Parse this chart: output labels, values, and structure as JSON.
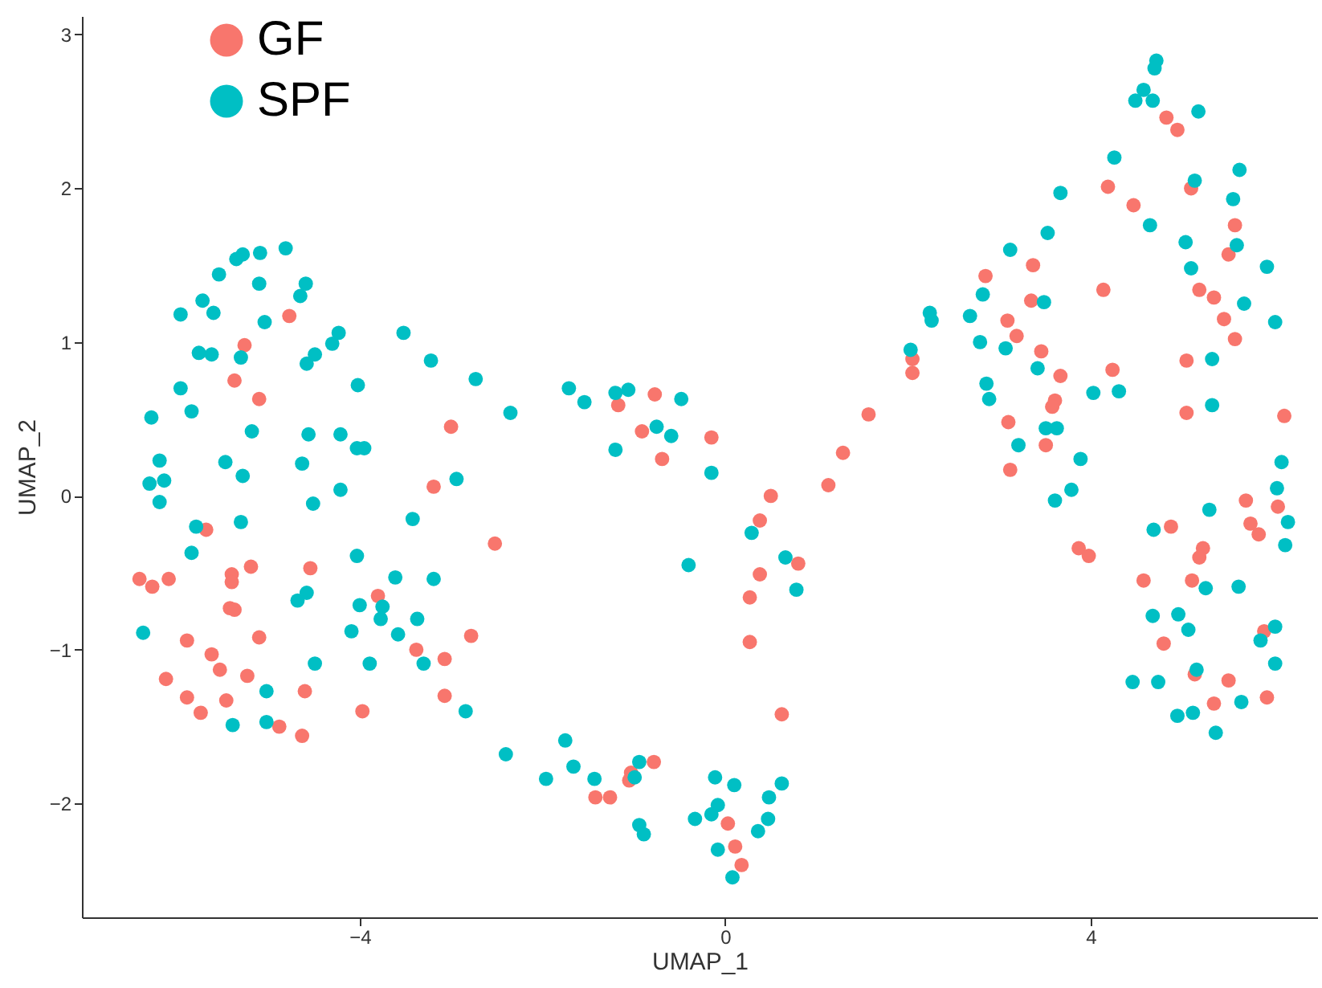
{
  "chart_data": {
    "type": "scatter",
    "xlabel": "UMAP_1",
    "ylabel": "UMAP_2",
    "xlim": [
      -7.04,
      6.48
    ],
    "ylim": [
      -2.74,
      3.12
    ],
    "xticks": [
      -4,
      0,
      4
    ],
    "yticks": [
      -2,
      -1,
      0,
      1,
      2,
      3
    ],
    "grid": false,
    "legend": "top left",
    "marker": "circle",
    "series": [
      {
        "name": "GF",
        "color": "#f8766d",
        "x": [
          -4.77,
          -5.26,
          -5.37,
          -5.1,
          -3.0,
          -3.19,
          -5.68,
          -2.52,
          -6.41,
          -6.27,
          -6.09,
          -5.4,
          -5.4,
          -5.19,
          -4.54,
          -3.8,
          -5.42,
          -5.37,
          -5.1,
          -5.89,
          -5.62,
          -5.53,
          -6.12,
          -5.23,
          -5.89,
          -5.46,
          -5.74,
          -4.6,
          -3.97,
          -4.88,
          -4.63,
          -3.38,
          -3.07,
          -2.78,
          -3.07,
          -1.17,
          -0.77,
          -0.91,
          -0.69,
          -0.15,
          0.5,
          0.38,
          0.38,
          0.8,
          0.27,
          0.27,
          0.62,
          -0.78,
          -1.03,
          -1.05,
          -1.42,
          -1.26,
          0.03,
          0.11,
          0.18,
          4.83,
          4.95,
          4.19,
          4.47,
          5.1,
          5.58,
          5.51,
          3.37,
          2.85,
          3.35,
          4.14,
          5.19,
          5.35,
          5.46,
          5.58,
          3.09,
          3.19,
          3.46,
          3.67,
          4.24,
          5.05,
          2.05,
          2.05,
          1.57,
          1.29,
          1.13,
          3.61,
          3.58,
          3.1,
          3.51,
          3.12,
          5.05,
          6.12,
          5.7,
          6.05,
          3.87,
          3.98,
          4.88,
          5.75,
          5.84,
          5.23,
          5.19,
          4.58,
          5.11,
          5.9,
          4.8,
          5.14,
          5.51,
          5.35,
          5.93
        ],
        "values": [
          1.17,
          0.98,
          0.75,
          0.63,
          0.45,
          0.06,
          -0.22,
          -0.31,
          -0.54,
          -0.59,
          -0.54,
          -0.51,
          -0.56,
          -0.46,
          -0.47,
          -0.65,
          -0.73,
          -0.74,
          -0.92,
          -0.94,
          -1.03,
          -1.13,
          -1.19,
          -1.17,
          -1.31,
          -1.33,
          -1.41,
          -1.27,
          -1.4,
          -1.5,
          -1.56,
          -1.0,
          -1.06,
          -0.91,
          -1.3,
          0.59,
          0.66,
          0.42,
          0.24,
          0.38,
          0.0,
          -0.16,
          -0.51,
          -0.44,
          -0.66,
          -0.95,
          -1.42,
          -1.73,
          -1.8,
          -1.85,
          -1.96,
          -1.96,
          -2.13,
          -2.28,
          -2.4,
          2.46,
          2.38,
          2.01,
          1.89,
          2.0,
          1.76,
          1.57,
          1.5,
          1.43,
          1.27,
          1.34,
          1.34,
          1.29,
          1.15,
          1.02,
          1.14,
          1.04,
          0.94,
          0.78,
          0.82,
          0.88,
          0.89,
          0.8,
          0.53,
          0.28,
          0.07,
          0.62,
          0.58,
          0.48,
          0.33,
          0.17,
          0.54,
          0.52,
          -0.03,
          -0.07,
          -0.34,
          -0.39,
          -0.2,
          -0.18,
          -0.25,
          -0.34,
          -0.4,
          -0.55,
          -0.55,
          -0.88,
          -0.96,
          -1.16,
          -1.2,
          -1.35,
          -1.31
        ]
      },
      {
        "name": "SPF",
        "color": "#00bfc4",
        "x": [
          -4.81,
          -5.09,
          -5.28,
          -5.35,
          -5.54,
          -5.1,
          -4.59,
          -4.65,
          -5.72,
          -5.96,
          -5.6,
          -5.04,
          -4.23,
          -4.3,
          -3.52,
          -5.76,
          -5.62,
          -5.3,
          -4.49,
          -4.58,
          -3.22,
          -2.73,
          -5.96,
          -4.02,
          -5.84,
          -6.28,
          -2.35,
          -5.18,
          -4.56,
          -4.21,
          -4.03,
          -3.95,
          -6.19,
          -5.47,
          -4.63,
          -2.94,
          -6.3,
          -6.14,
          -5.28,
          -4.21,
          -6.19,
          -4.51,
          -3.42,
          -5.79,
          -5.3,
          -5.84,
          -4.03,
          -3.61,
          -3.19,
          -4.58,
          -4.68,
          -4.0,
          -3.75,
          -3.77,
          -3.37,
          -6.37,
          -4.09,
          -3.58,
          -3.3,
          -4.49,
          -3.89,
          -5.02,
          -2.84,
          -5.39,
          -5.02,
          -1.71,
          -1.54,
          -1.2,
          -1.06,
          -0.48,
          -0.75,
          -0.59,
          -1.2,
          -0.15,
          -0.4,
          0.29,
          0.66,
          0.78,
          -2.4,
          -1.75,
          -1.66,
          -1.96,
          -1.43,
          -0.94,
          -0.99,
          -0.94,
          -0.89,
          -0.11,
          0.1,
          0.62,
          0.48,
          0.47,
          0.36,
          -0.08,
          -0.15,
          -0.33,
          -0.08,
          0.08,
          4.72,
          4.7,
          4.58,
          4.49,
          4.68,
          5.18,
          4.26,
          3.67,
          5.14,
          5.63,
          5.56,
          4.65,
          5.6,
          3.53,
          5.04,
          5.1,
          5.93,
          3.12,
          2.82,
          3.49,
          5.68,
          6.02,
          2.68,
          2.24,
          2.26,
          2.79,
          3.07,
          2.03,
          3.42,
          5.33,
          2.86,
          2.89,
          4.03,
          4.31,
          5.33,
          3.51,
          3.63,
          3.21,
          3.89,
          3.79,
          3.61,
          6.09,
          6.04,
          5.3,
          6.16,
          6.13,
          4.69,
          5.26,
          5.62,
          4.68,
          4.96,
          5.07,
          6.02,
          5.86,
          6.02,
          5.16,
          4.46,
          4.74,
          5.65,
          4.95,
          5.12,
          5.37
        ],
        "values": [
          1.61,
          1.58,
          1.57,
          1.54,
          1.44,
          1.38,
          1.38,
          1.3,
          1.27,
          1.18,
          1.19,
          1.13,
          1.06,
          0.99,
          1.06,
          0.93,
          0.92,
          0.9,
          0.92,
          0.86,
          0.88,
          0.76,
          0.7,
          0.72,
          0.55,
          0.51,
          0.54,
          0.42,
          0.4,
          0.4,
          0.31,
          0.31,
          0.23,
          0.22,
          0.21,
          0.11,
          0.08,
          0.1,
          0.13,
          0.04,
          -0.04,
          -0.05,
          -0.15,
          -0.2,
          -0.17,
          -0.37,
          -0.39,
          -0.53,
          -0.54,
          -0.63,
          -0.68,
          -0.71,
          -0.72,
          -0.8,
          -0.8,
          -0.89,
          -0.88,
          -0.9,
          -1.09,
          -1.09,
          -1.09,
          -1.27,
          -1.4,
          -1.49,
          -1.47,
          0.7,
          0.61,
          0.67,
          0.69,
          0.63,
          0.45,
          0.39,
          0.3,
          0.15,
          -0.45,
          -0.24,
          -0.4,
          -0.61,
          -1.68,
          -1.59,
          -1.76,
          -1.84,
          -1.84,
          -1.73,
          -1.83,
          -2.14,
          -2.2,
          -1.83,
          -1.88,
          -1.87,
          -1.96,
          -2.1,
          -2.18,
          -2.01,
          -2.07,
          -2.1,
          -2.3,
          -2.48,
          2.83,
          2.78,
          2.64,
          2.57,
          2.57,
          2.5,
          2.2,
          1.97,
          2.05,
          2.12,
          1.93,
          1.76,
          1.63,
          1.71,
          1.65,
          1.48,
          1.49,
          1.6,
          1.31,
          1.26,
          1.25,
          1.13,
          1.17,
          1.19,
          1.14,
          1.0,
          0.96,
          0.95,
          0.83,
          0.89,
          0.73,
          0.63,
          0.67,
          0.68,
          0.59,
          0.44,
          0.44,
          0.33,
          0.24,
          0.04,
          -0.03,
          0.22,
          0.05,
          -0.09,
          -0.17,
          -0.32,
          -0.22,
          -0.6,
          -0.59,
          -0.78,
          -0.77,
          -0.87,
          -0.85,
          -0.94,
          -1.09,
          -1.13,
          -1.21,
          -1.21,
          -1.34,
          -1.43,
          -1.41,
          -1.54
        ]
      }
    ]
  }
}
